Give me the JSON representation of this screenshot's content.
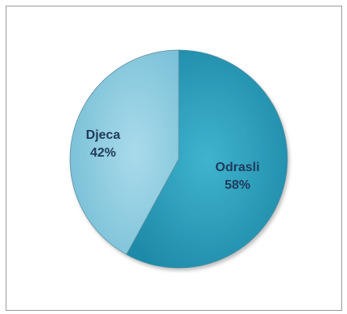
{
  "chart_data": {
    "type": "pie",
    "categories": [
      "Odrasli",
      "Djeca"
    ],
    "values": [
      58,
      42
    ],
    "labels": [
      {
        "name": "Odrasli",
        "percent": "58%"
      },
      {
        "name": "Djeca",
        "percent": "42%"
      }
    ],
    "title": "",
    "legend": "none",
    "colors": {
      "Odrasli": "#2fa3c0",
      "Djeca": "#8fcde2"
    }
  }
}
